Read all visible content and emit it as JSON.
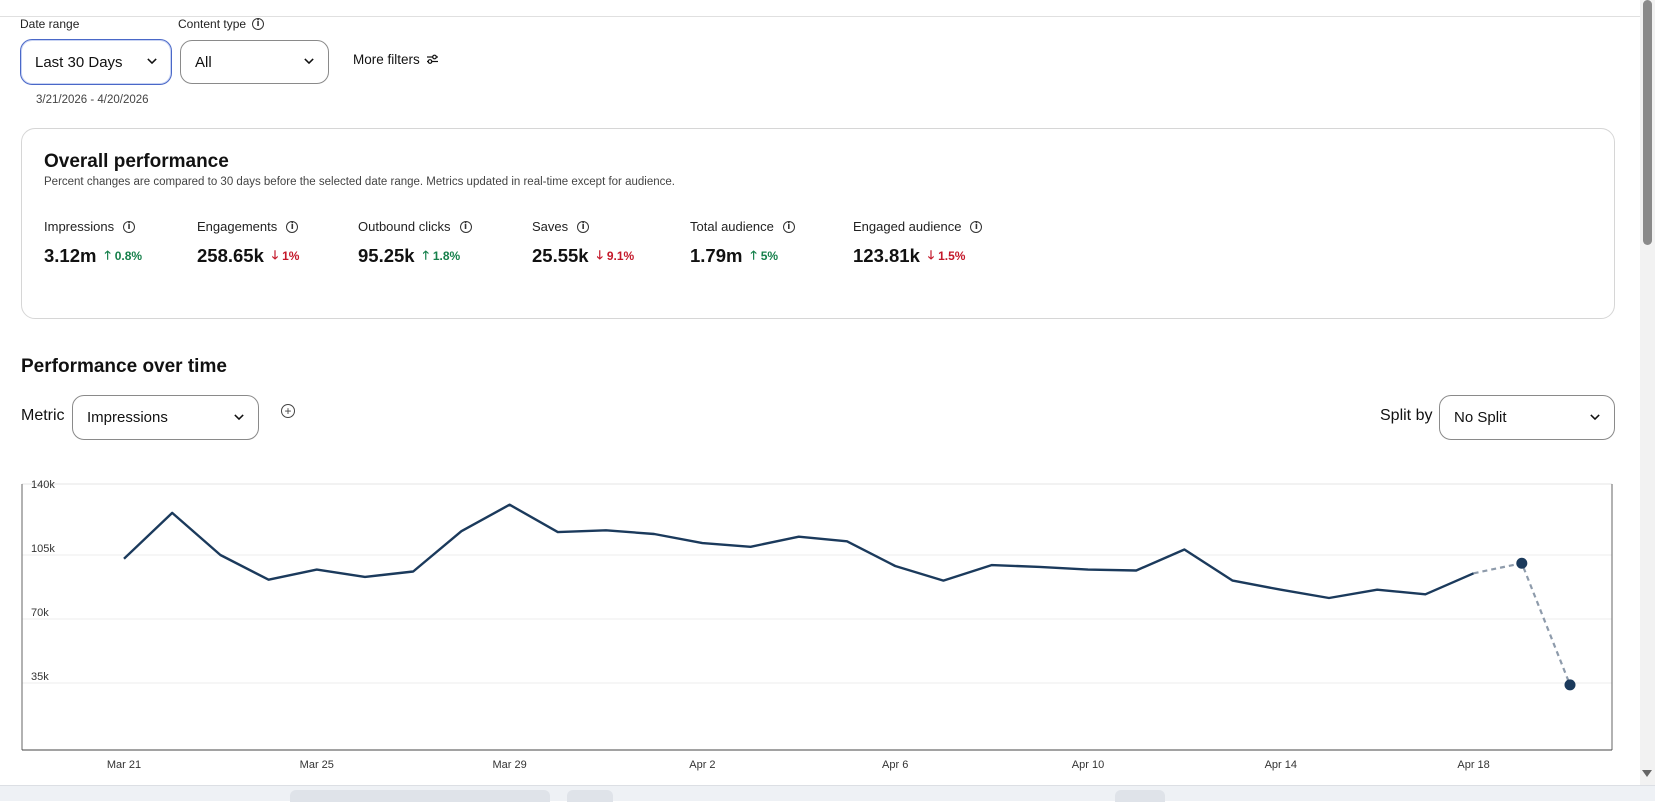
{
  "filters": {
    "date_range": {
      "label": "Date range",
      "value": "Last 30 Days",
      "range_text": "3/21/2026 - 4/20/2026"
    },
    "content_type": {
      "label": "Content type",
      "value": "All"
    },
    "more_filters_label": "More filters"
  },
  "overall": {
    "title": "Overall performance",
    "subtitle": "Percent changes are compared to 30 days before the selected date range. Metrics updated in real-time except for audience.",
    "metrics": [
      {
        "label": "Impressions",
        "value": "3.12m",
        "change": "0.8%",
        "direction": "up"
      },
      {
        "label": "Engagements",
        "value": "258.65k",
        "change": "1%",
        "direction": "down"
      },
      {
        "label": "Outbound clicks",
        "value": "95.25k",
        "change": "1.8%",
        "direction": "up"
      },
      {
        "label": "Saves",
        "value": "25.55k",
        "change": "9.1%",
        "direction": "down"
      },
      {
        "label": "Total audience",
        "value": "1.79m",
        "change": "5%",
        "direction": "up"
      },
      {
        "label": "Engaged audience",
        "value": "123.81k",
        "change": "1.5%",
        "direction": "down"
      }
    ]
  },
  "performance": {
    "title": "Performance over time",
    "metric_label": "Metric",
    "metric_value": "Impressions",
    "split_label": "Split by",
    "split_value": "No Split"
  },
  "colors": {
    "line": "#1b3a5c",
    "projection": "#8e9bab",
    "up": "#16804b",
    "down": "#c4182a",
    "active_border": "#4a68c8"
  },
  "chart_data": {
    "type": "line",
    "y_ticks": [
      "140k",
      "105k",
      "70k",
      "35k"
    ],
    "y_tick_values": [
      140000,
      105000,
      70000,
      35000
    ],
    "ylim": [
      0,
      150000
    ],
    "x_ticks": [
      "Mar 21",
      "Mar 25",
      "Mar 29",
      "Apr 2",
      "Apr 6",
      "Apr 10",
      "Apr 14",
      "Apr 18"
    ],
    "x": [
      "Mar 21",
      "Mar 22",
      "Mar 23",
      "Mar 24",
      "Mar 25",
      "Mar 26",
      "Mar 27",
      "Mar 28",
      "Mar 29",
      "Mar 30",
      "Mar 31",
      "Apr 1",
      "Apr 2",
      "Apr 3",
      "Apr 4",
      "Apr 5",
      "Apr 6",
      "Apr 7",
      "Apr 8",
      "Apr 9",
      "Apr 10",
      "Apr 11",
      "Apr 12",
      "Apr 13",
      "Apr 14",
      "Apr 15",
      "Apr 16",
      "Apr 17",
      "Apr 18",
      "Apr 19",
      "Apr 20"
    ],
    "series": [
      {
        "values": [
          103000,
          128000,
          105000,
          91500,
          97000,
          93000,
          96000,
          118000,
          132500,
          117500,
          118500,
          116500,
          111500,
          109500,
          115000,
          112500,
          99000,
          91000,
          99500,
          98500,
          97000,
          96500,
          108000,
          91000,
          86000,
          81500,
          86000,
          83500,
          95000,
          null,
          null
        ]
      },
      {
        "values": [
          null,
          null,
          null,
          null,
          null,
          null,
          null,
          null,
          null,
          null,
          null,
          null,
          null,
          null,
          null,
          null,
          null,
          null,
          null,
          null,
          null,
          null,
          null,
          null,
          null,
          null,
          null,
          null,
          95000,
          100500,
          34000
        ],
        "style": "dashed"
      }
    ],
    "grid": true,
    "legend": "none"
  }
}
